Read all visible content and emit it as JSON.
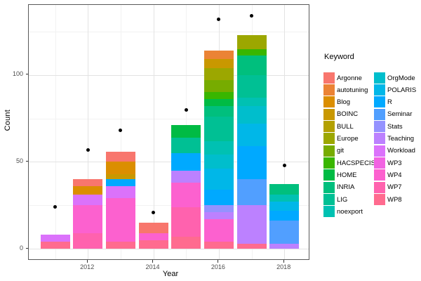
{
  "chart_data": {
    "type": "bar",
    "stacked": true,
    "with_points": true,
    "title": "",
    "xlabel": "Year",
    "ylabel": "Count",
    "legend_title": "Keyword",
    "grid": true,
    "x_major": [
      2012,
      2014,
      2016,
      2018
    ],
    "x_minor": [
      2011,
      2013,
      2015,
      2017
    ],
    "y_major": [
      0,
      50,
      100
    ],
    "y_minor": [
      25,
      75,
      125
    ],
    "ylim": [
      0,
      140
    ],
    "point_color": "#000000",
    "keywords": [
      {
        "name": "Argonne",
        "color": "#F8766D"
      },
      {
        "name": "autotuning",
        "color": "#EB8335"
      },
      {
        "name": "Blog",
        "color": "#DB8E00"
      },
      {
        "name": "BOINC",
        "color": "#C99800"
      },
      {
        "name": "BULL",
        "color": "#B3A000"
      },
      {
        "name": "Europe",
        "color": "#9CA700"
      },
      {
        "name": "git",
        "color": "#77AC00"
      },
      {
        "name": "HACSPECIS",
        "color": "#39B600"
      },
      {
        "name": "HOME",
        "color": "#00BB44"
      },
      {
        "name": "INRIA",
        "color": "#00BF7D"
      },
      {
        "name": "LIG",
        "color": "#00C094"
      },
      {
        "name": "noexport",
        "color": "#00C1B2"
      },
      {
        "name": "OrgMode",
        "color": "#00BECC"
      },
      {
        "name": "POLARIS",
        "color": "#00B7E8"
      },
      {
        "name": "R",
        "color": "#00A9FF"
      },
      {
        "name": "Seminar",
        "color": "#519FFF"
      },
      {
        "name": "Stats",
        "color": "#9492FF"
      },
      {
        "name": "Teaching",
        "color": "#BC81FF"
      },
      {
        "name": "Workload",
        "color": "#DB72FB"
      },
      {
        "name": "WP3",
        "color": "#F263E2"
      },
      {
        "name": "WP4",
        "color": "#FC61CF"
      },
      {
        "name": "WP7",
        "color": "#FF62AE"
      },
      {
        "name": "WP8",
        "color": "#FF6B8F"
      }
    ],
    "legend_split": 12,
    "bars": [
      {
        "year": 2011,
        "total": 8,
        "segments": [
          [
            "WP8",
            4
          ],
          [
            "Workload",
            4
          ]
        ]
      },
      {
        "year": 2012,
        "total": 40,
        "segments": [
          [
            "WP7",
            9
          ],
          [
            "WP4",
            16
          ],
          [
            "Workload",
            6
          ],
          [
            "Blog",
            5
          ],
          [
            "Argonne",
            4
          ]
        ]
      },
      {
        "year": 2013,
        "total": 56,
        "segments": [
          [
            "WP8",
            4
          ],
          [
            "WP4",
            25
          ],
          [
            "Workload",
            7
          ],
          [
            "R",
            4
          ],
          [
            "BOINC",
            3
          ],
          [
            "Blog",
            7
          ],
          [
            "Argonne",
            6
          ]
        ]
      },
      {
        "year": 2014,
        "total": 15,
        "segments": [
          [
            "WP8",
            5
          ],
          [
            "WP4",
            4
          ],
          [
            "Argonne",
            6
          ]
        ]
      },
      {
        "year": 2015,
        "total": 71,
        "segments": [
          [
            "WP8",
            7
          ],
          [
            "WP7",
            17
          ],
          [
            "WP4",
            14
          ],
          [
            "Teaching",
            7
          ],
          [
            "R",
            10
          ],
          [
            "LIG",
            9
          ],
          [
            "HOME",
            7
          ]
        ]
      },
      {
        "year": 2016,
        "total": 114,
        "segments": [
          [
            "WP8",
            4
          ],
          [
            "WP4",
            13
          ],
          [
            "Teaching",
            4
          ],
          [
            "Stats",
            4
          ],
          [
            "R",
            9
          ],
          [
            "POLARIS",
            12
          ],
          [
            "OrgMode",
            8
          ],
          [
            "noexport",
            8
          ],
          [
            "LIG",
            14
          ],
          [
            "INRIA",
            6
          ],
          [
            "HOME",
            4
          ],
          [
            "HACSPECIS",
            4
          ],
          [
            "git",
            7
          ],
          [
            "Europe",
            7
          ],
          [
            "BOINC",
            5
          ],
          [
            "autotuning",
            5
          ]
        ]
      },
      {
        "year": 2017,
        "total": 123,
        "segments": [
          [
            "WP8",
            3
          ],
          [
            "Teaching",
            22
          ],
          [
            "Seminar",
            15
          ],
          [
            "R",
            19
          ],
          [
            "POLARIS",
            13
          ],
          [
            "OrgMode",
            10
          ],
          [
            "noexport",
            5
          ],
          [
            "LIG",
            13
          ],
          [
            "INRIA",
            11
          ],
          [
            "HACSPECIS",
            4
          ],
          [
            "Europe",
            8
          ]
        ]
      },
      {
        "year": 2018,
        "total": 37,
        "segments": [
          [
            "Teaching",
            3
          ],
          [
            "Seminar",
            13
          ],
          [
            "R",
            6
          ],
          [
            "POLARIS",
            5
          ],
          [
            "noexport",
            4
          ],
          [
            "INRIA",
            6
          ]
        ]
      }
    ],
    "points": [
      {
        "year": 2011,
        "value": 24
      },
      {
        "year": 2012,
        "value": 57
      },
      {
        "year": 2013,
        "value": 68
      },
      {
        "year": 2014,
        "value": 21
      },
      {
        "year": 2015,
        "value": 80
      },
      {
        "year": 2016,
        "value": 132
      },
      {
        "year": 2017,
        "value": 134
      },
      {
        "year": 2018,
        "value": 48
      }
    ]
  }
}
